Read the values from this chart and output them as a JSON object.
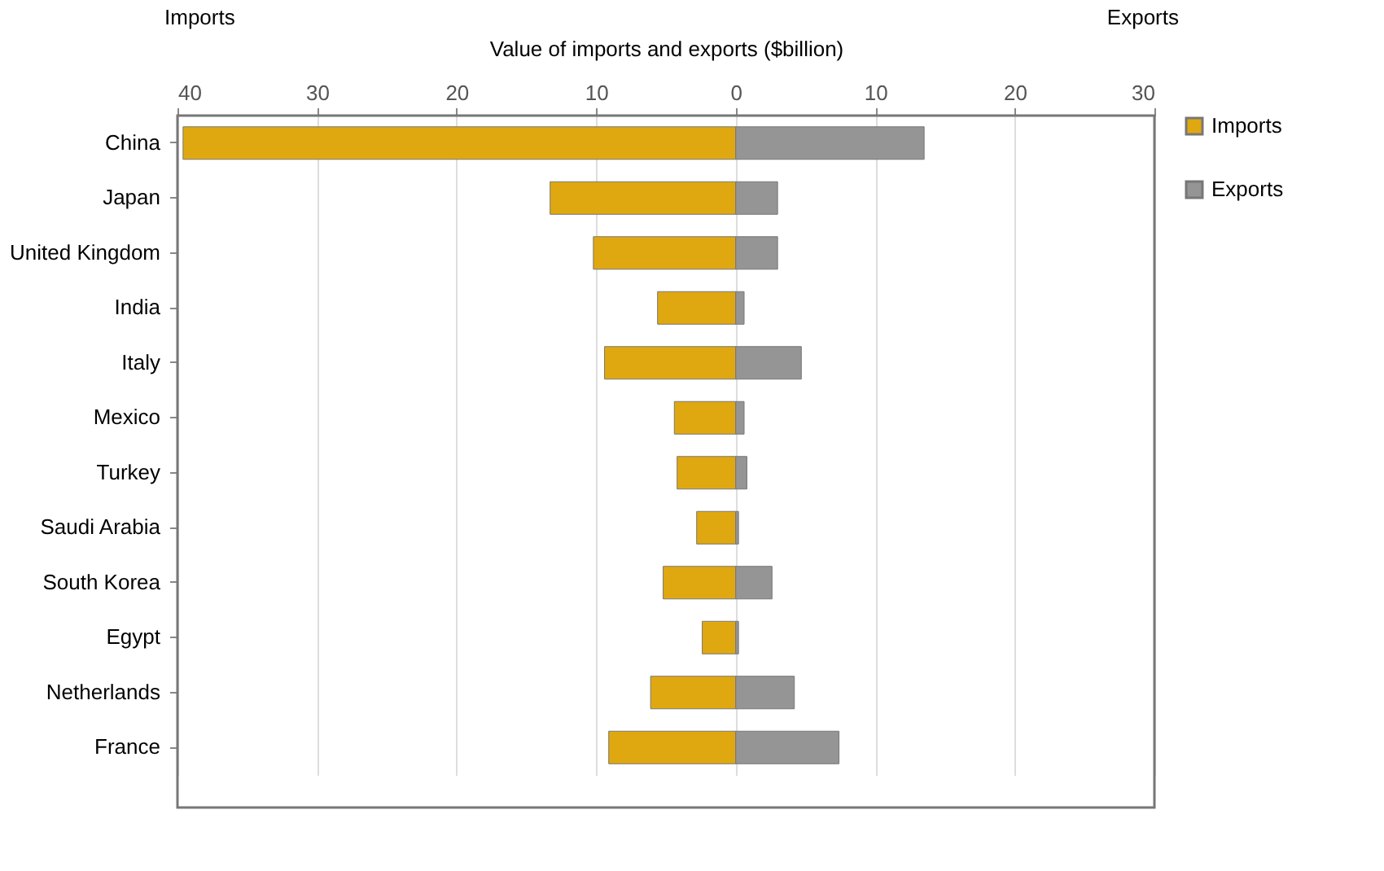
{
  "chart_data": {
    "type": "bar",
    "orientation": "horizontal",
    "stacked": true,
    "xlabel": "Value of imports and exports ($billion)",
    "annotations": [
      "Imports",
      "Exports"
    ],
    "categories": [
      "China",
      "Japan",
      "United Kingdom",
      "India",
      "Italy",
      "Mexico",
      "Turkey",
      "Saudi Arabia",
      "South Korea",
      "Egypt",
      "Netherlands",
      "France"
    ],
    "series": [
      {
        "name": "Imports",
        "color": "#e0a810",
        "values": [
          -39.6,
          -13.3,
          -10.2,
          -5.6,
          -9.4,
          -4.4,
          -4.2,
          -2.8,
          -5.2,
          -2.4,
          -6.1,
          -9.1
        ]
      },
      {
        "name": "Exports",
        "color": "#959595",
        "values": [
          13.5,
          3.0,
          3.0,
          0.6,
          4.7,
          0.6,
          0.8,
          0.2,
          2.6,
          0.2,
          4.2,
          7.4
        ]
      }
    ],
    "xlim": [
      -40,
      30
    ],
    "xticks": [
      {
        "value": -40,
        "label": "40"
      },
      {
        "value": -30,
        "label": "30"
      },
      {
        "value": -20,
        "label": "20"
      },
      {
        "value": -10,
        "label": "10"
      },
      0,
      10,
      20,
      30
    ],
    "grid": "x",
    "legend": "right"
  }
}
